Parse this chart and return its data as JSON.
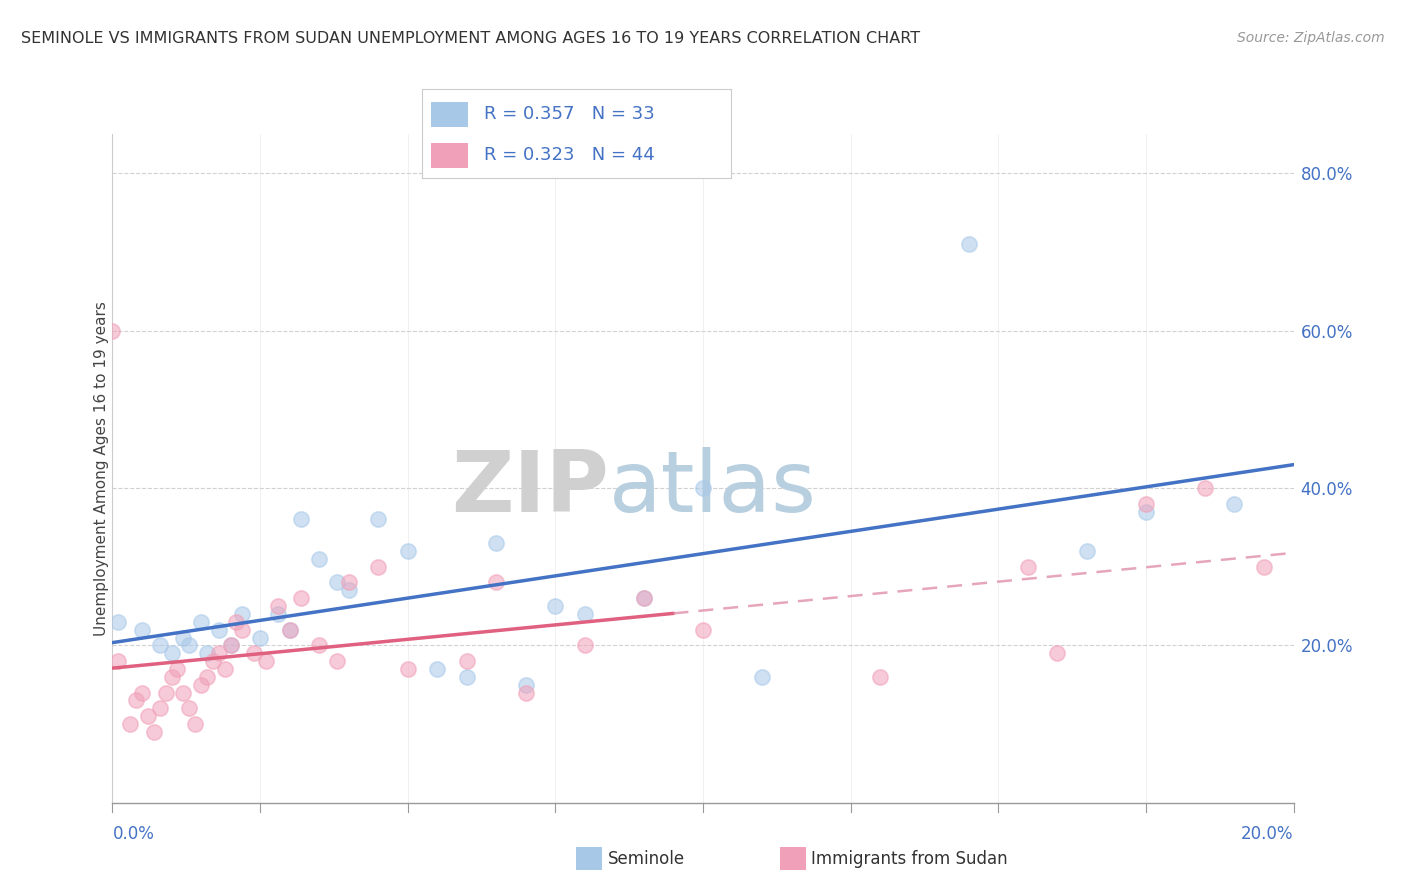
{
  "title": "SEMINOLE VS IMMIGRANTS FROM SUDAN UNEMPLOYMENT AMONG AGES 16 TO 19 YEARS CORRELATION CHART",
  "source": "Source: ZipAtlas.com",
  "ylabel": "Unemployment Among Ages 16 to 19 years",
  "r_seminole": 0.357,
  "n_seminole": 33,
  "r_sudan": 0.323,
  "n_sudan": 44,
  "seminole_color": "#a8c8e8",
  "sudan_color": "#f0a0b8",
  "seminole_line_color": "#4472c4",
  "sudan_line_color": "#e06080",
  "dashed_line_color": "#e090a8",
  "watermark_zip_color": "#d8d8d8",
  "watermark_atlas_color": "#c0d4e8",
  "seminole_scatter_x": [
    0.001,
    0.005,
    0.008,
    0.01,
    0.012,
    0.013,
    0.015,
    0.016,
    0.018,
    0.02,
    0.022,
    0.025,
    0.028,
    0.03,
    0.032,
    0.035,
    0.038,
    0.04,
    0.045,
    0.05,
    0.055,
    0.06,
    0.065,
    0.07,
    0.075,
    0.08,
    0.09,
    0.1,
    0.11,
    0.145,
    0.165,
    0.175,
    0.19
  ],
  "seminole_scatter_y": [
    0.23,
    0.22,
    0.2,
    0.19,
    0.21,
    0.2,
    0.23,
    0.19,
    0.22,
    0.2,
    0.24,
    0.21,
    0.24,
    0.22,
    0.36,
    0.31,
    0.28,
    0.27,
    0.36,
    0.32,
    0.17,
    0.16,
    0.33,
    0.15,
    0.25,
    0.24,
    0.26,
    0.4,
    0.16,
    0.71,
    0.32,
    0.37,
    0.38
  ],
  "sudan_scatter_x": [
    0.0,
    0.001,
    0.003,
    0.004,
    0.005,
    0.006,
    0.007,
    0.008,
    0.009,
    0.01,
    0.011,
    0.012,
    0.013,
    0.014,
    0.015,
    0.016,
    0.017,
    0.018,
    0.019,
    0.02,
    0.021,
    0.022,
    0.024,
    0.026,
    0.028,
    0.03,
    0.032,
    0.035,
    0.038,
    0.04,
    0.045,
    0.05,
    0.06,
    0.065,
    0.07,
    0.08,
    0.09,
    0.1,
    0.13,
    0.155,
    0.16,
    0.175,
    0.185,
    0.195
  ],
  "sudan_scatter_y": [
    0.6,
    0.18,
    0.1,
    0.13,
    0.14,
    0.11,
    0.09,
    0.12,
    0.14,
    0.16,
    0.17,
    0.14,
    0.12,
    0.1,
    0.15,
    0.16,
    0.18,
    0.19,
    0.17,
    0.2,
    0.23,
    0.22,
    0.19,
    0.18,
    0.25,
    0.22,
    0.26,
    0.2,
    0.18,
    0.28,
    0.3,
    0.17,
    0.18,
    0.28,
    0.14,
    0.2,
    0.26,
    0.22,
    0.16,
    0.3,
    0.19,
    0.38,
    0.4,
    0.3
  ],
  "x_range": [
    0.0,
    0.2
  ],
  "y_range": [
    0.0,
    0.85
  ],
  "seminole_trend": [
    0.21,
    0.4
  ],
  "sudan_trend_solid": [
    0.13,
    0.4
  ],
  "sudan_trend_dashed_start_x": 0.095,
  "sudan_trend_dashed": [
    0.295,
    0.48
  ]
}
